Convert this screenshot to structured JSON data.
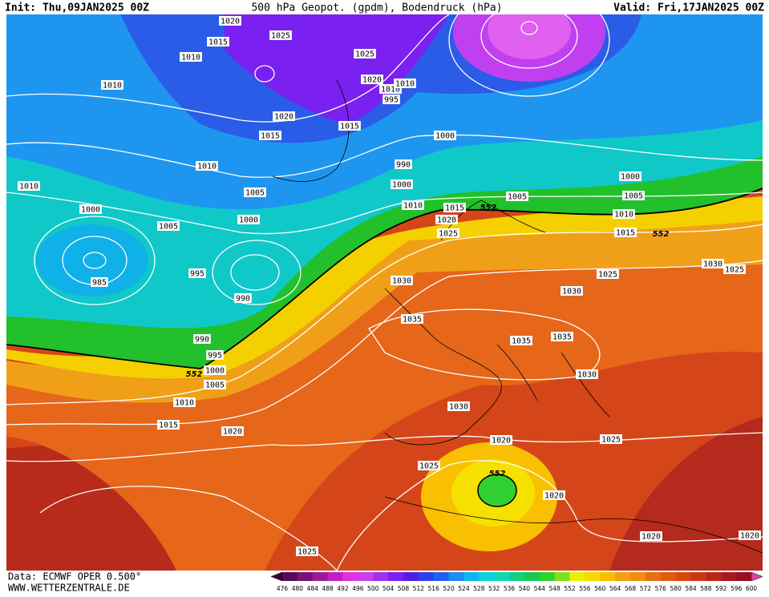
{
  "header": {
    "init": "Init: Thu,09JAN2025 00Z",
    "title": "500 hPa Geopot. (gpdm), Bodendruck (hPa)",
    "valid": "Valid: Fri,17JAN2025 00Z"
  },
  "footer": {
    "source": "Data: ECMWF OPER 0.500°",
    "website": "WWW.WETTERZENTRALE.DE"
  },
  "pressure_labels": [
    "1020",
    "1025",
    "1015",
    "1010",
    "1025",
    "1020",
    "1010",
    "1010",
    "1010",
    "995",
    "1020",
    "1015",
    "1015",
    "1000",
    "1010",
    "990",
    "1000",
    "1010",
    "1005",
    "1000",
    "1005",
    "1005",
    "1000",
    "1010",
    "1015",
    "1010",
    "1000",
    "1020",
    "1005",
    "1025",
    "1015",
    "1030",
    "1025",
    "995",
    "985",
    "1025",
    "1030",
    "990",
    "1030",
    "1035",
    "990",
    "1035",
    "1035",
    "995",
    "1000",
    "1030",
    "1005",
    "1010",
    "1030",
    "1015",
    "1020",
    "1020",
    "1025",
    "1025",
    "1020",
    "1020",
    "1020",
    "1025"
  ],
  "height_labels": [
    "552",
    "552",
    "552",
    "552"
  ],
  "colorbar": {
    "levels": [
      476,
      480,
      484,
      488,
      492,
      496,
      500,
      504,
      508,
      512,
      516,
      520,
      524,
      528,
      532,
      536,
      540,
      544,
      548,
      552,
      556,
      560,
      564,
      568,
      572,
      576,
      580,
      584,
      588,
      592,
      596,
      600
    ],
    "colors": [
      "#5a0a5a",
      "#7a107a",
      "#9a1a9a",
      "#c020c0",
      "#e030e0",
      "#c840f0",
      "#a030f0",
      "#7a20f0",
      "#5020e0",
      "#3040e8",
      "#2060f0",
      "#1e8cf0",
      "#10b4f0",
      "#10d0e0",
      "#10d8b0",
      "#10d080",
      "#18c850",
      "#30d030",
      "#80e020",
      "#e8f000",
      "#f8d800",
      "#f8c000",
      "#f0a010",
      "#f08c10",
      "#e87010",
      "#e05a10",
      "#d84810",
      "#c83818",
      "#b82818",
      "#a81820",
      "#981028"
    ],
    "below_color": "#3a003a",
    "above_color": "#e040a0"
  }
}
